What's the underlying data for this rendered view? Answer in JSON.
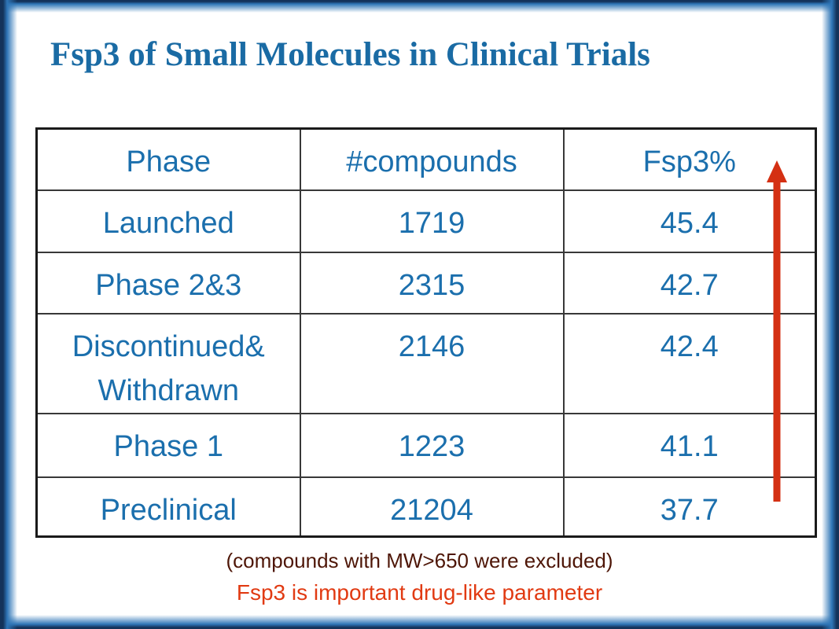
{
  "slide": {
    "title": "Fsp3 of Small Molecules in Clinical Trials",
    "footnote_primary": "(compounds with MW>650 were excluded)",
    "footnote_accent": "Fsp3 is important drug-like parameter"
  },
  "table": {
    "columns": [
      "Phase",
      "#compounds",
      "Fsp3%"
    ],
    "rows": [
      {
        "phase": "Launched",
        "compounds": "1719",
        "fsp3_pct": "45.4",
        "emphasis": false
      },
      {
        "phase": "Phase 2&3",
        "compounds": "2315",
        "fsp3_pct": "42.7",
        "emphasis": false
      },
      {
        "phase": "Discontinued& Withdrawn",
        "compounds": "2146",
        "fsp3_pct": "42.4",
        "emphasis": true
      },
      {
        "phase": "Phase 1",
        "compounds": "1223",
        "fsp3_pct": "41.1",
        "emphasis": false
      },
      {
        "phase": "Preclinical",
        "compounds": "21204",
        "fsp3_pct": "37.7",
        "emphasis": false
      }
    ]
  },
  "annotations": {
    "trend_arrow": {
      "direction": "up",
      "meaning": "Fsp3% increases toward launch"
    }
  },
  "colors": {
    "title_blue": "#1a6ba4",
    "table_text_blue": "#1b6fad",
    "emphasis_maroon": "#79230a",
    "footnote_maroon": "#4e1607",
    "accent_red": "#e13a12",
    "arrow_red": "#d43013",
    "frame_navy": "#14335a",
    "frame_blue": "#2e75b6"
  }
}
